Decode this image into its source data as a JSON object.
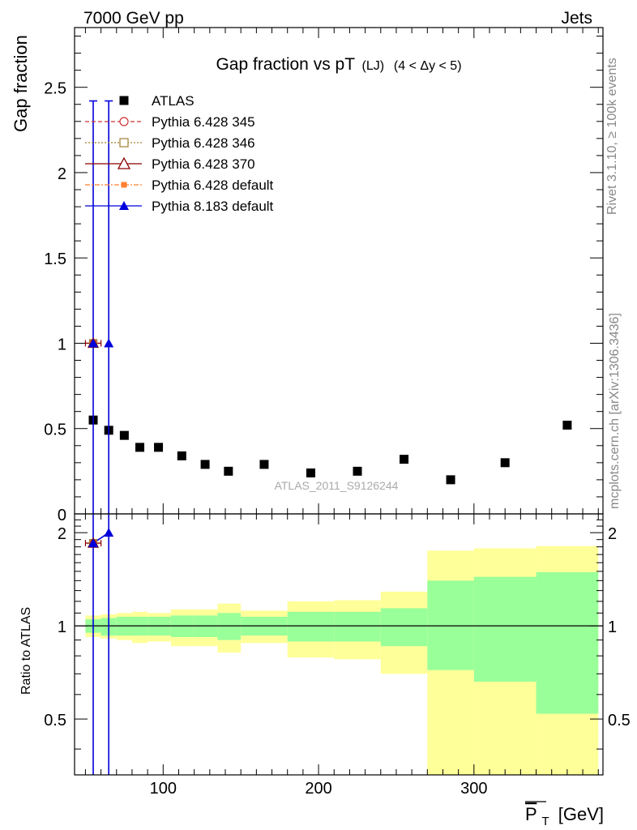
{
  "header": {
    "energy_label": "7000 GeV pp",
    "process_label": "Jets"
  },
  "side_labels": {
    "rivet": "Rivet 3.1.10, ≥ 100k events",
    "mcplots": "mcplots.cern.ch [arXiv:1306.3436]"
  },
  "colors": {
    "atlas": "#000000",
    "py6_345": "#cc3333",
    "py6_346": "#a08030",
    "py6_370": "#8b0000",
    "py6_default": "#ff8030",
    "py8_default": "#0000dd",
    "band_inner": "#99ff99",
    "band_outer": "#ffff99"
  },
  "chart_data": {
    "type": "scatter",
    "title_main": "Gap fraction vs pT",
    "title_sub": "(LJ)",
    "title_range": "(4 < Δy < 5)",
    "analysis_tag": "ATLAS_2011_S9126244",
    "xlabel": "P",
    "xlabel_sub": "T",
    "xlabel_unit": "[GeV]",
    "ylabel": "Gap fraction",
    "ratio_ylabel": "Ratio to ATLAS",
    "xlim": [
      43,
      383
    ],
    "ylim": [
      0,
      2.85
    ],
    "ratio_ylim": [
      0.33,
      2.3
    ],
    "x_ticks": [
      100,
      200,
      300
    ],
    "y_ticks": [
      0,
      0.5,
      1,
      1.5,
      2,
      2.5
    ],
    "ratio_ticks": [
      0.5,
      1,
      2
    ],
    "legend": [
      {
        "name": "ATLAS",
        "key": "atlas"
      },
      {
        "name": "Pythia 6.428 345",
        "key": "py6_345"
      },
      {
        "name": "Pythia 6.428 346",
        "key": "py6_346"
      },
      {
        "name": "Pythia 6.428 370",
        "key": "py6_370"
      },
      {
        "name": "Pythia 6.428 default",
        "key": "py6_default"
      },
      {
        "name": "Pythia 8.183 default",
        "key": "py8_default"
      }
    ],
    "atlas_points": [
      {
        "x": 55,
        "y": 0.55
      },
      {
        "x": 65,
        "y": 0.49
      },
      {
        "x": 75,
        "y": 0.46
      },
      {
        "x": 85,
        "y": 0.39
      },
      {
        "x": 97,
        "y": 0.39
      },
      {
        "x": 112,
        "y": 0.34
      },
      {
        "x": 127,
        "y": 0.29
      },
      {
        "x": 142,
        "y": 0.25
      },
      {
        "x": 165,
        "y": 0.29
      },
      {
        "x": 195,
        "y": 0.24
      },
      {
        "x": 225,
        "y": 0.25
      },
      {
        "x": 255,
        "y": 0.32
      },
      {
        "x": 285,
        "y": 0.2
      },
      {
        "x": 320,
        "y": 0.3
      },
      {
        "x": 360,
        "y": 0.52
      }
    ],
    "py6_points": [
      {
        "x": 55,
        "y": 1.0,
        "xerr": 5,
        "ratio": 1.85
      }
    ],
    "py8_points": [
      {
        "x": 55,
        "y": 1.0,
        "ylo": 0.0,
        "yhi": 2.42,
        "ratio": 1.85
      },
      {
        "x": 65,
        "y": 1.0,
        "ylo": 0.0,
        "yhi": 2.42,
        "ratio": 2.0
      }
    ],
    "uncertainty_bands": [
      {
        "xlo": 50,
        "xhi": 60,
        "in_lo": 0.95,
        "in_hi": 1.05,
        "out_lo": 0.92,
        "out_hi": 1.08
      },
      {
        "xlo": 60,
        "xhi": 70,
        "in_lo": 0.93,
        "in_hi": 1.06,
        "out_lo": 0.91,
        "out_hi": 1.09
      },
      {
        "xlo": 70,
        "xhi": 80,
        "in_lo": 0.93,
        "in_hi": 1.07,
        "out_lo": 0.9,
        "out_hi": 1.1
      },
      {
        "xlo": 80,
        "xhi": 90,
        "in_lo": 0.93,
        "in_hi": 1.07,
        "out_lo": 0.88,
        "out_hi": 1.11
      },
      {
        "xlo": 90,
        "xhi": 105,
        "in_lo": 0.93,
        "in_hi": 1.07,
        "out_lo": 0.89,
        "out_hi": 1.1
      },
      {
        "xlo": 105,
        "xhi": 120,
        "in_lo": 0.92,
        "in_hi": 1.08,
        "out_lo": 0.86,
        "out_hi": 1.13
      },
      {
        "xlo": 120,
        "xhi": 135,
        "in_lo": 0.92,
        "in_hi": 1.08,
        "out_lo": 0.86,
        "out_hi": 1.13
      },
      {
        "xlo": 135,
        "xhi": 150,
        "in_lo": 0.9,
        "in_hi": 1.1,
        "out_lo": 0.82,
        "out_hi": 1.18
      },
      {
        "xlo": 150,
        "xhi": 180,
        "in_lo": 0.93,
        "in_hi": 1.07,
        "out_lo": 0.88,
        "out_hi": 1.12
      },
      {
        "xlo": 180,
        "xhi": 210,
        "in_lo": 0.89,
        "in_hi": 1.11,
        "out_lo": 0.79,
        "out_hi": 1.2
      },
      {
        "xlo": 210,
        "xhi": 240,
        "in_lo": 0.89,
        "in_hi": 1.11,
        "out_lo": 0.78,
        "out_hi": 1.21
      },
      {
        "xlo": 240,
        "xhi": 270,
        "in_lo": 0.86,
        "in_hi": 1.14,
        "out_lo": 0.7,
        "out_hi": 1.29
      },
      {
        "xlo": 270,
        "xhi": 300,
        "in_lo": 0.72,
        "in_hi": 1.4,
        "out_lo": 0.33,
        "out_hi": 1.75
      },
      {
        "xlo": 300,
        "xhi": 340,
        "in_lo": 0.66,
        "in_hi": 1.44,
        "out_lo": 0.33,
        "out_hi": 1.78
      },
      {
        "xlo": 340,
        "xhi": 380,
        "in_lo": 0.52,
        "in_hi": 1.49,
        "out_lo": 0.33,
        "out_hi": 1.81
      }
    ]
  }
}
